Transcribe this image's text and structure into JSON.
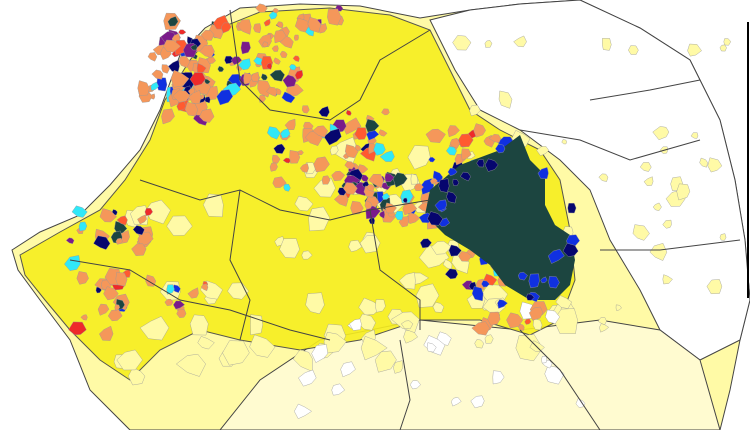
{
  "map": {
    "colors": {
      "background": "#ffffff",
      "pale_yellow": "#fffaa6",
      "bright_yellow": "#f7ee1e",
      "dark_green": "#1c4540",
      "orange": "#f5975a",
      "red": "#ee2a2a",
      "blue": "#1030e0",
      "navy": "#06066e",
      "cyan": "#30e8f8",
      "purple": "#7a1a8a",
      "border_county": "#444444",
      "border_commune": "#9a9a9a",
      "legend_line": "#000000"
    },
    "cluster_palette": [
      "#ee2a2a",
      "#f5975a",
      "#1030e0",
      "#06066e",
      "#30e8f8",
      "#7a1a8a",
      "#ff5a30",
      "#1c4540"
    ]
  }
}
